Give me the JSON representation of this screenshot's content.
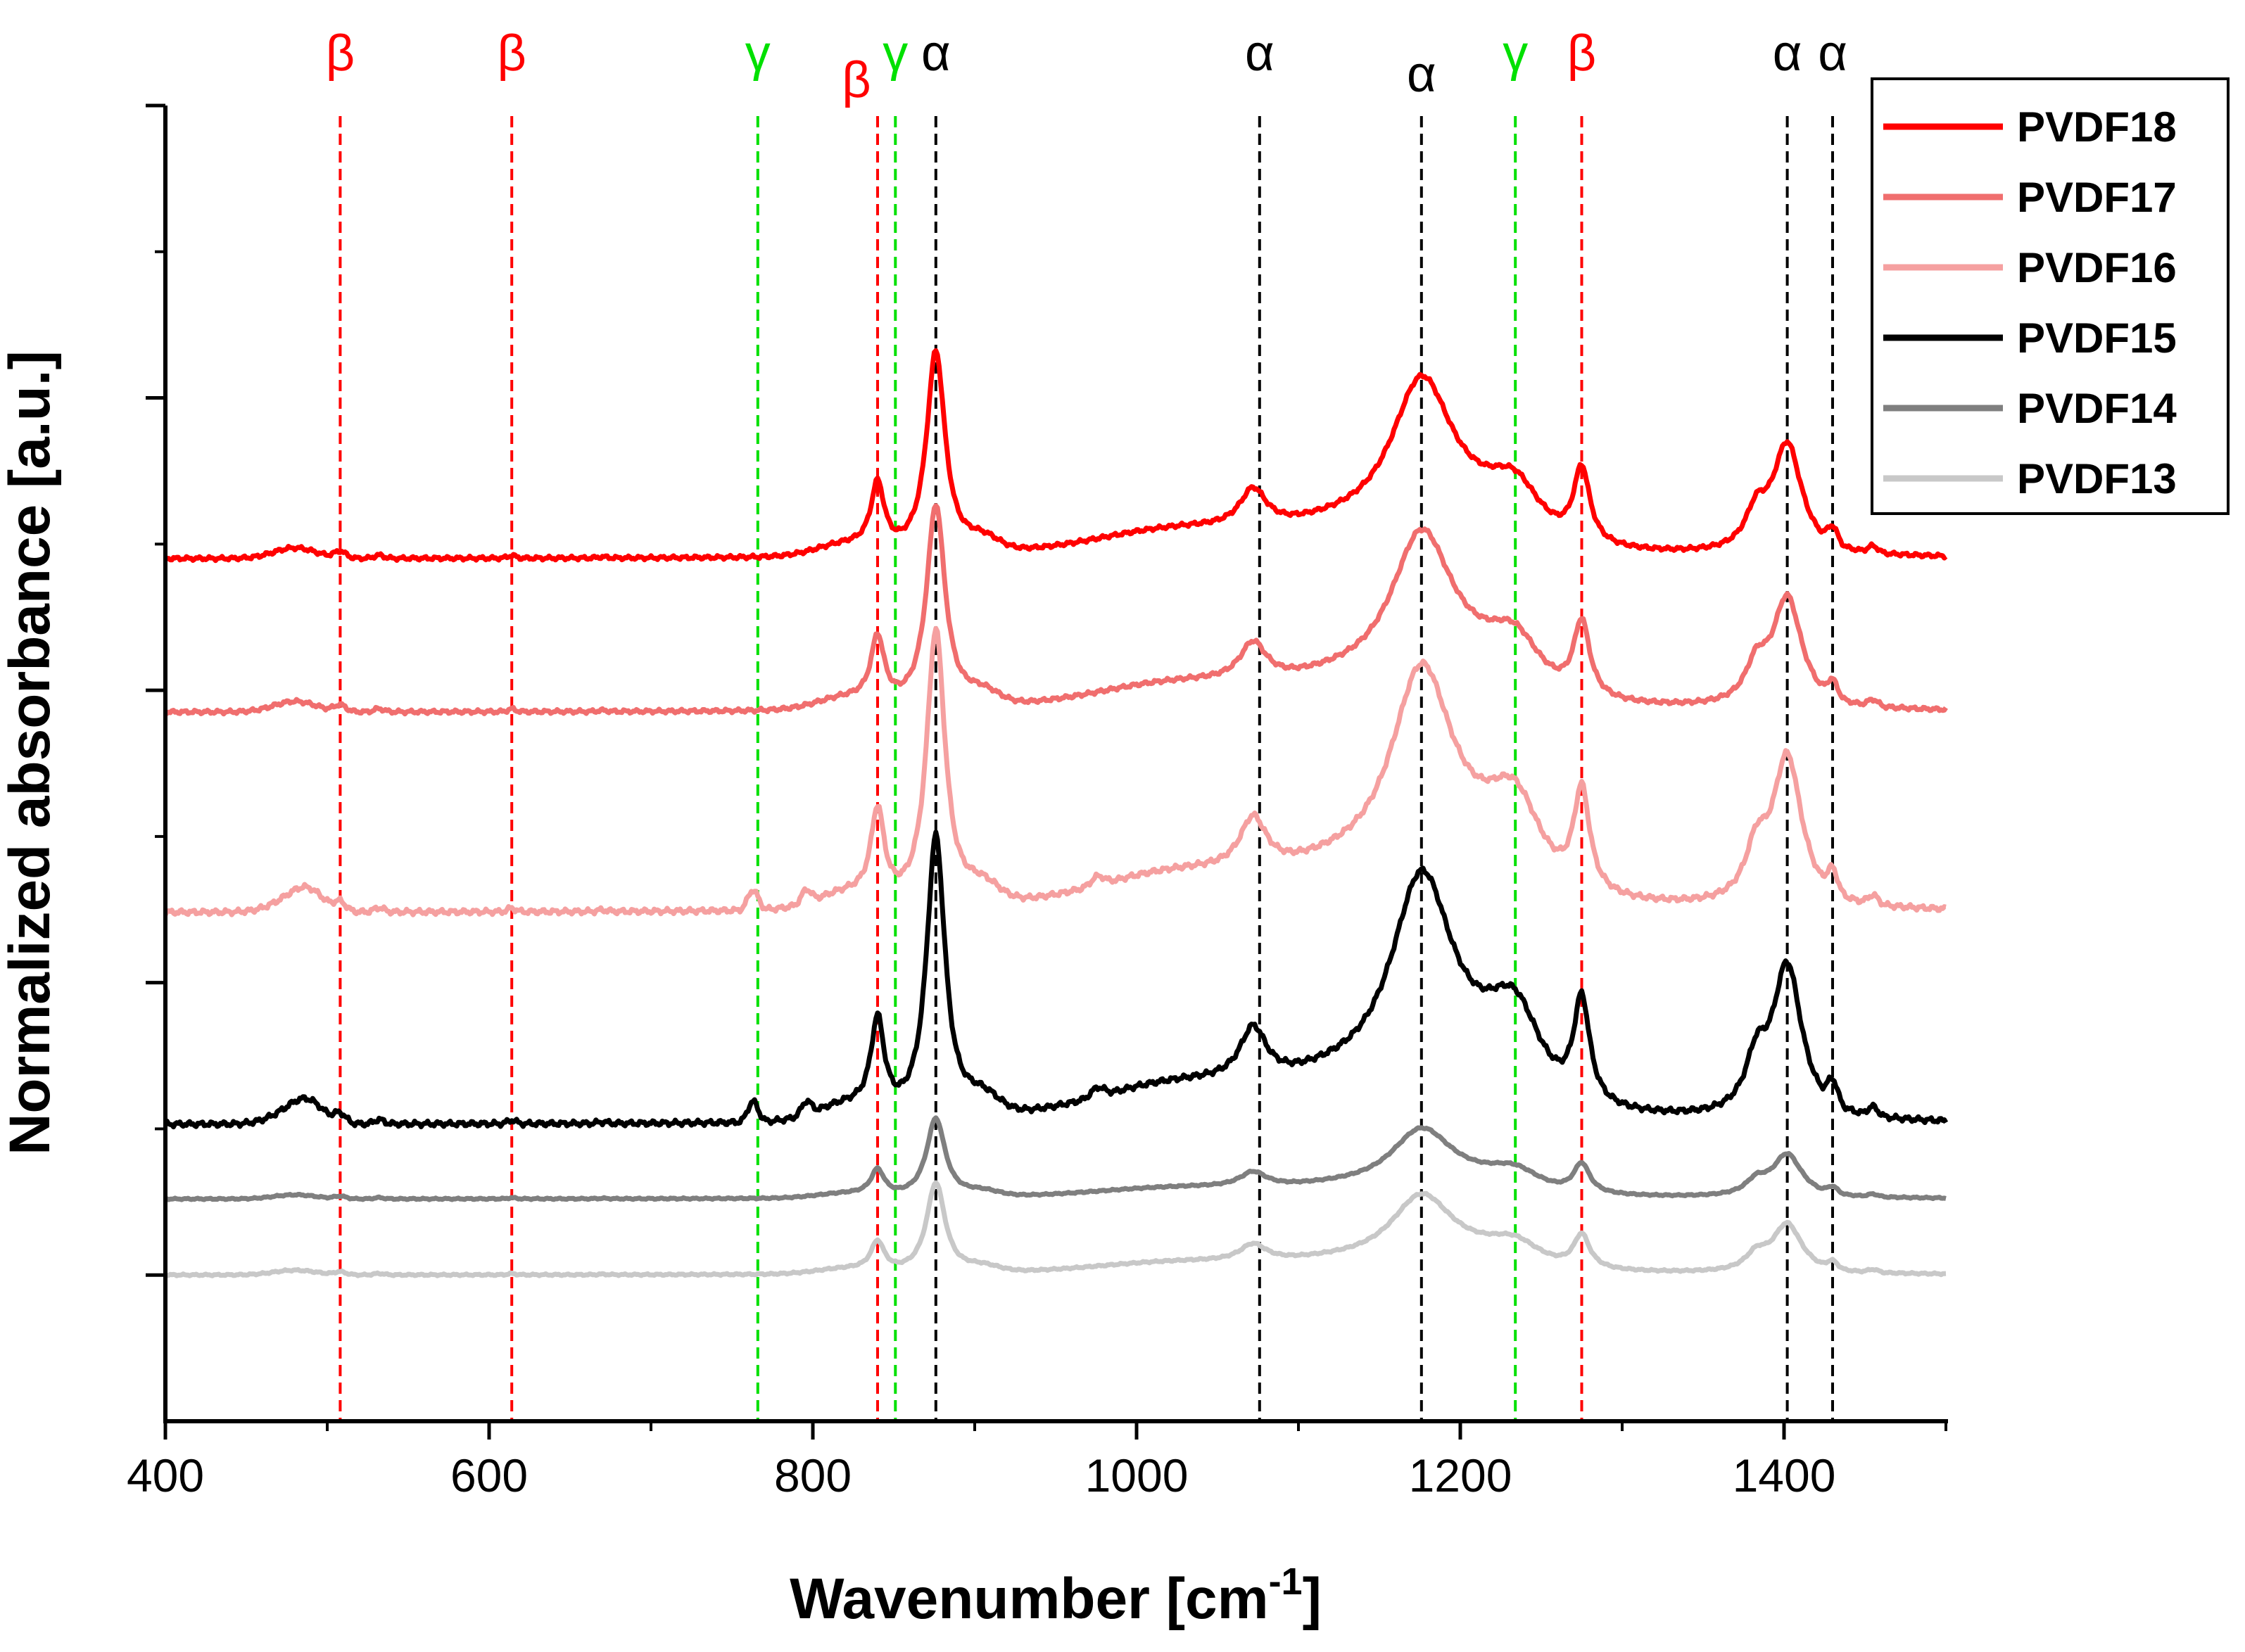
{
  "chart_data": {
    "type": "line",
    "title": "",
    "xlabel": "Wavenumber [cm",
    "xlabel_sup": "-1",
    "xlabel_end": "]",
    "ylabel": "Normalized absorbance [a.u.]",
    "xlim": [
      400,
      1500
    ],
    "ylim": [
      0,
      9
    ],
    "x_ticks": [
      400,
      600,
      800,
      1000,
      1200,
      1400
    ],
    "x_minor_ticks": [
      500,
      700,
      900,
      1100,
      1300,
      1500
    ],
    "y_major_ticks": [
      1,
      3,
      5,
      7,
      9
    ],
    "y_minor_ticks": [
      2,
      4,
      6,
      8
    ],
    "legend_position": "top-right",
    "peaks": [
      {
        "x": 1275,
        "y": 0.71,
        "w": 6
      },
      {
        "x": 1234,
        "y": 0.45,
        "w": 20
      },
      {
        "x": 1402,
        "y": 1.04,
        "w": 11
      },
      {
        "x": 1383,
        "y": 0.33,
        "w": 8
      },
      {
        "x": 1430,
        "y": 0.15,
        "w": 3
      },
      {
        "x": 1455,
        "y": 0.06,
        "w": 3
      }
    ],
    "series": [
      {
        "name": "PVDF18",
        "color": "#ff0000",
        "offset": 5.9,
        "scale": 0.72,
        "gamma": 0.0
      },
      {
        "name": "PVDF17",
        "color": "#f06e6e",
        "offset": 4.85,
        "scale": 0.72,
        "gamma": 0.0
      },
      {
        "name": "PVDF16",
        "color": "#f5a0a0",
        "offset": 3.48,
        "scale": 0.98,
        "gamma": 1.0
      },
      {
        "name": "PVDF15",
        "color": "#000000",
        "offset": 2.03,
        "scale": 1.0,
        "gamma": 1.0
      },
      {
        "name": "PVDF14",
        "color": "#7f7f7f",
        "offset": 1.52,
        "scale": 0.28,
        "gamma": 0.0
      },
      {
        "name": "PVDF13",
        "color": "#c8c8c8",
        "offset": 1.0,
        "scale": 0.32,
        "gamma": 0.0
      }
    ],
    "annotations": [
      {
        "label": "β",
        "x": 508,
        "color": "#ff0000",
        "label_level": "high"
      },
      {
        "label": "β",
        "x": 614,
        "color": "#ff0000",
        "label_level": "high"
      },
      {
        "label": "γ",
        "x": 766,
        "color": "#00e000",
        "label_level": "high"
      },
      {
        "label": "β",
        "x": 840,
        "color": "#ff0000",
        "label_level": "low"
      },
      {
        "label": "γ",
        "x": 851,
        "color": "#00e000",
        "label_level": "high"
      },
      {
        "label": "α",
        "x": 876,
        "color": "#000000",
        "label_level": "high"
      },
      {
        "label": "α",
        "x": 1076,
        "color": "#000000",
        "label_level": "high"
      },
      {
        "label": "α",
        "x": 1176,
        "color": "#000000",
        "label_level": "mid"
      },
      {
        "label": "γ",
        "x": 1234,
        "color": "#00e000",
        "label_level": "high"
      },
      {
        "label": "β",
        "x": 1275,
        "color": "#ff0000",
        "label_level": "high"
      },
      {
        "label": "α",
        "x": 1402,
        "color": "#000000",
        "label_level": "high"
      },
      {
        "label": "α",
        "x": 1430,
        "color": "#000000",
        "label_level": "high"
      }
    ]
  }
}
